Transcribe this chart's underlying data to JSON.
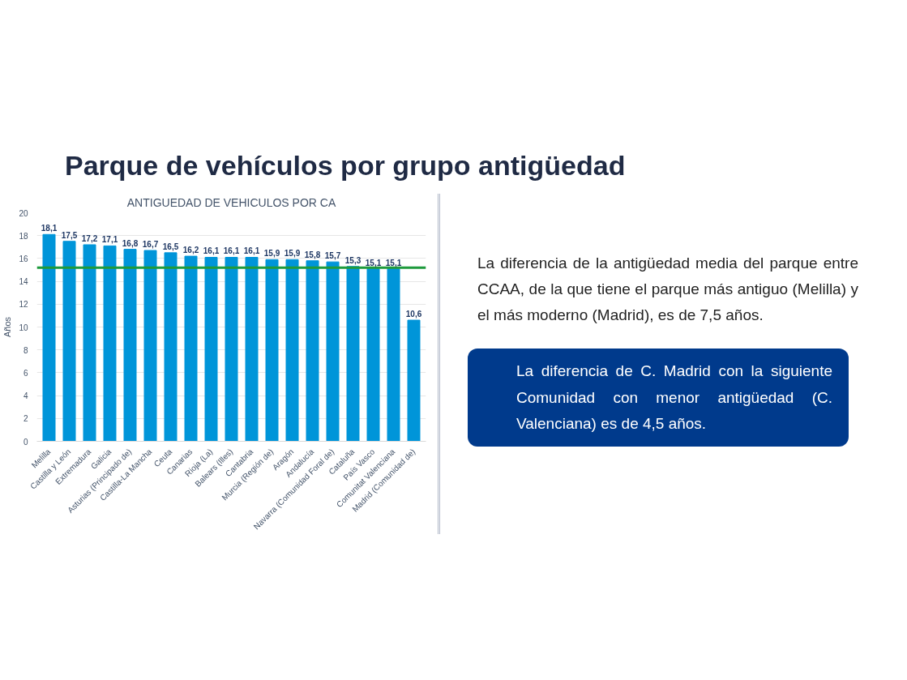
{
  "chart_data": {
    "type": "bar",
    "title": "Parque de vehículos por grupo antigüedad",
    "subtitle": "ANTIGUEDAD DE VEHICULOS POR CA",
    "ylabel": "Años",
    "categories": [
      "Melilla",
      "Castilla y León",
      "Extremadura",
      "Galicia",
      "Asturias (Principado de)",
      "Castilla-La Mancha",
      "Ceuta",
      "Canarias",
      "Rioja (La)",
      "Balears (Illes)",
      "Cantabria",
      "Murcia (Región de)",
      "Aragón",
      "Andalucía",
      "Navarra (Comunidad Foral de)",
      "Cataluña",
      "País Vasco",
      "Comunitat Valenciana",
      "Madrid (Comunidad de)"
    ],
    "values": [
      18.1,
      17.5,
      17.2,
      17.1,
      16.8,
      16.7,
      16.5,
      16.2,
      16.1,
      16.1,
      16.1,
      15.9,
      15.9,
      15.8,
      15.7,
      15.3,
      15.1,
      15.1,
      10.6
    ],
    "value_labels": [
      "18,1",
      "17,5",
      "17,2",
      "17,1",
      "16,8",
      "16,7",
      "16,5",
      "16,2",
      "16,1",
      "16,1",
      "16,1",
      "15,9",
      "15,9",
      "15,8",
      "15,7",
      "15,3",
      "15,1",
      "15,1",
      "10,6"
    ],
    "color": "#0095d9",
    "ylim": [
      0,
      20
    ],
    "yticks": [
      0,
      2,
      4,
      6,
      8,
      10,
      12,
      14,
      16,
      18,
      20
    ],
    "grid": "y",
    "ref_lines": [
      {
        "axis": "y",
        "value": 15.2,
        "color": "#1e9a3c"
      }
    ],
    "annotations": [
      "La diferencia de la antigüedad media del parque entre CCAA, de la que tiene el parque más antiguo (Melilla) y el más moderno (Madrid), es de 7,5 años.",
      "La diferencia de C. Madrid con la siguiente Comunidad con menor antigüedad (C. Valenciana) es de 4,5 años."
    ]
  }
}
